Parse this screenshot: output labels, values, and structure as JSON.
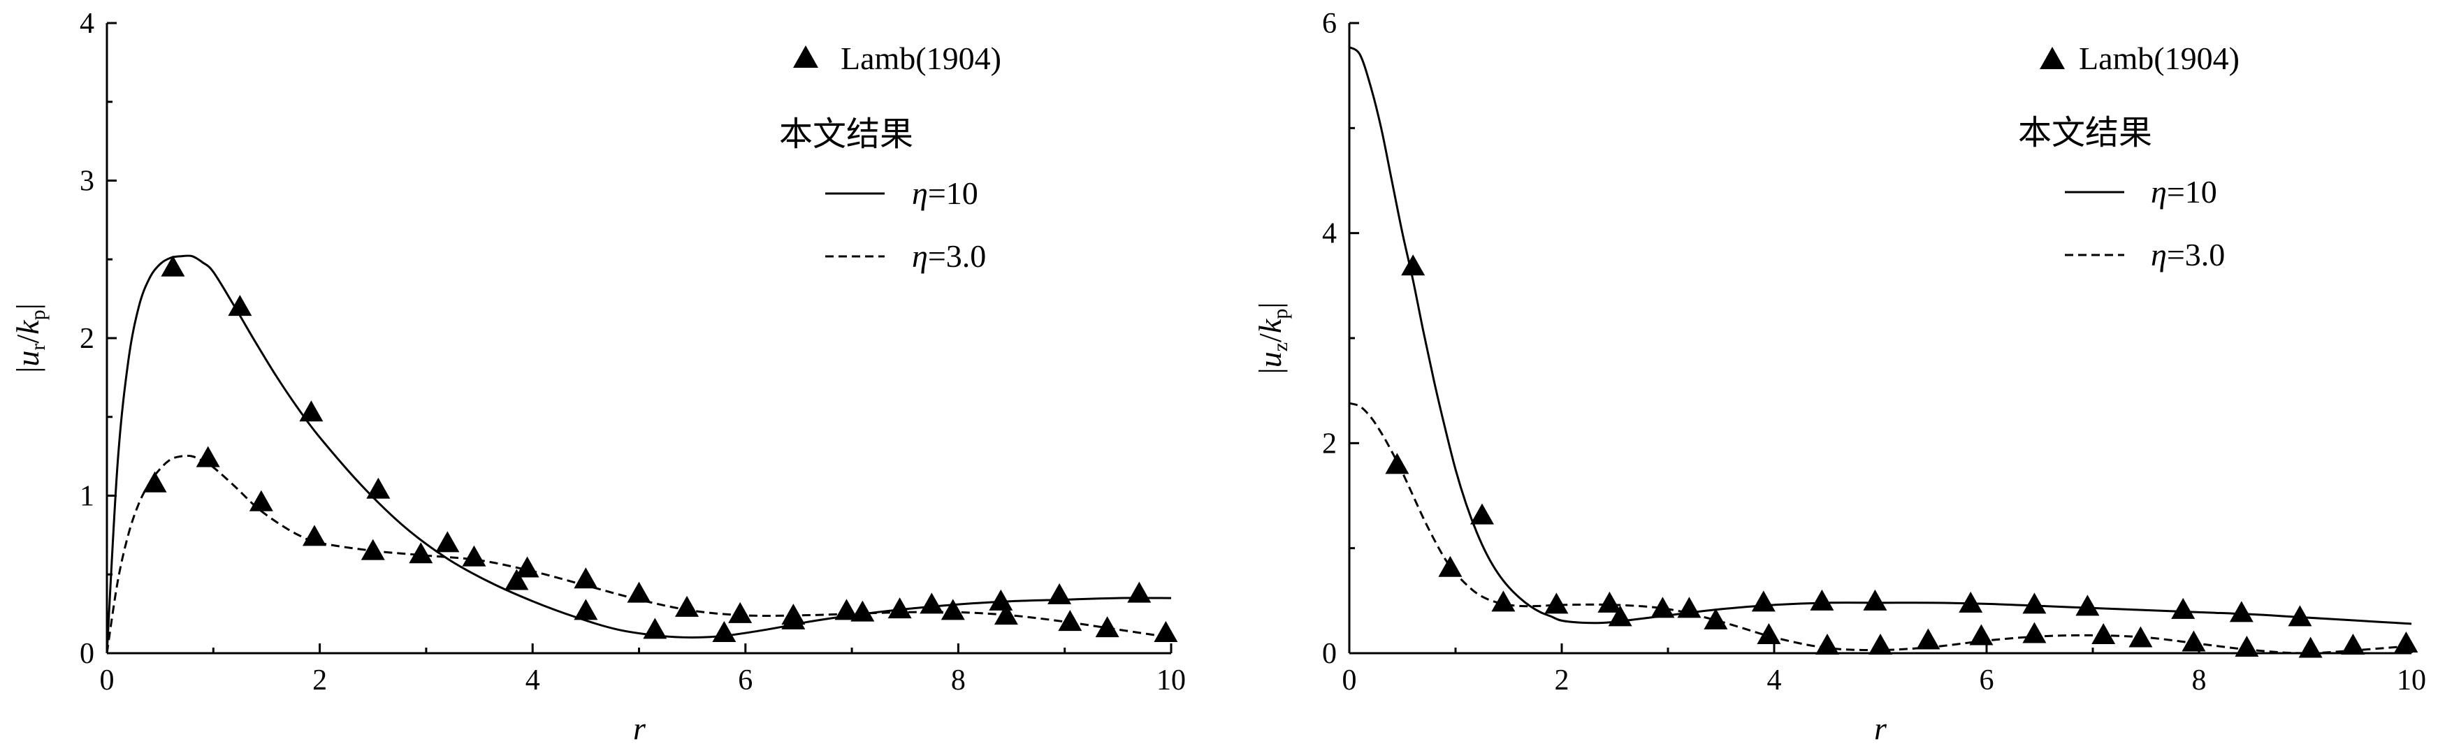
{
  "chart_data": [
    {
      "type": "line",
      "xlabel": "r",
      "ylabel": {
        "prefix": "|",
        "var": "u",
        "var_sub": "r",
        "slash": "/",
        "k": "k",
        "k_sub": "p",
        "suffix": "|"
      },
      "xlim": [
        0,
        10
      ],
      "ylim": [
        0,
        4
      ],
      "xticks": [
        0,
        2,
        4,
        6,
        8,
        10
      ],
      "yticks": [
        0,
        1,
        2,
        3,
        4
      ],
      "xtick_labels": [
        "0",
        "2",
        "4",
        "6",
        "8",
        "10"
      ],
      "ytick_labels": [
        "0",
        "1",
        "2",
        "3",
        "4"
      ],
      "legend": {
        "position": "top-right",
        "marker_label": "Lamb(1904)",
        "group_title": "本文结果",
        "solid": {
          "sym": "η",
          "rest": "=10"
        },
        "dashed": {
          "sym": "η",
          "rest": "=3.0"
        }
      },
      "series": [
        {
          "name": "η=10",
          "style": "solid",
          "x": [
            0,
            0.1,
            0.2,
            0.3,
            0.4,
            0.5,
            0.6,
            0.7,
            0.8,
            0.9,
            1.0,
            1.2,
            1.4,
            1.6,
            1.8,
            2.0,
            2.4,
            2.8,
            3.2,
            3.6,
            4.0,
            4.4,
            4.8,
            5.2,
            5.5,
            5.8,
            6.2,
            6.6,
            7.0,
            7.5,
            8.0,
            8.5,
            9.0,
            9.5,
            10.0
          ],
          "y": [
            0,
            1.2,
            1.85,
            2.2,
            2.38,
            2.47,
            2.51,
            2.52,
            2.52,
            2.48,
            2.42,
            2.2,
            1.97,
            1.75,
            1.55,
            1.37,
            1.06,
            0.8,
            0.6,
            0.45,
            0.33,
            0.23,
            0.15,
            0.11,
            0.1,
            0.11,
            0.15,
            0.2,
            0.24,
            0.28,
            0.31,
            0.33,
            0.34,
            0.35,
            0.35
          ]
        },
        {
          "name": "η=3.0",
          "style": "dashed",
          "x": [
            0,
            0.1,
            0.2,
            0.3,
            0.4,
            0.5,
            0.6,
            0.7,
            0.8,
            0.9,
            1.0,
            1.2,
            1.4,
            1.6,
            1.8,
            2.0,
            2.5,
            3.0,
            3.5,
            4.0,
            4.5,
            5.0,
            5.5,
            6.0,
            6.5,
            7.0,
            7.5,
            8.0,
            8.5,
            9.0,
            9.5,
            10.0
          ],
          "y": [
            0,
            0.45,
            0.75,
            0.95,
            1.08,
            1.17,
            1.23,
            1.25,
            1.25,
            1.22,
            1.18,
            1.06,
            0.93,
            0.83,
            0.75,
            0.7,
            0.65,
            0.62,
            0.59,
            0.52,
            0.43,
            0.34,
            0.27,
            0.24,
            0.24,
            0.25,
            0.26,
            0.26,
            0.24,
            0.2,
            0.15,
            0.1
          ]
        },
        {
          "name": "Lamb(1904)",
          "style": "marker",
          "x": [
            0.45,
            0.62,
            0.95,
            1.25,
            1.45,
            1.92,
            1.95,
            2.5,
            2.55,
            2.95,
            3.2,
            3.45,
            3.85,
            3.95,
            4.5,
            4.5,
            5.0,
            5.15,
            5.45,
            5.8,
            5.95,
            6.45,
            6.45,
            6.95,
            7.1,
            7.45,
            7.75,
            7.95,
            8.4,
            8.45,
            8.95,
            9.05,
            9.4,
            9.7,
            9.95
          ],
          "y": [
            1.07,
            2.44,
            1.23,
            2.19,
            0.95,
            1.52,
            0.73,
            0.64,
            1.03,
            0.62,
            0.69,
            0.6,
            0.45,
            0.53,
            0.46,
            0.26,
            0.37,
            0.14,
            0.28,
            0.12,
            0.24,
            0.2,
            0.23,
            0.26,
            0.25,
            0.27,
            0.3,
            0.26,
            0.32,
            0.23,
            0.36,
            0.19,
            0.15,
            0.37,
            0.12
          ]
        }
      ]
    },
    {
      "type": "line",
      "xlabel": "r",
      "ylabel": {
        "prefix": "|",
        "var": "u",
        "var_sub": "z",
        "slash": "/",
        "k": "k",
        "k_sub": "p",
        "suffix": "|"
      },
      "xlim": [
        0,
        10
      ],
      "ylim": [
        0,
        6
      ],
      "xticks": [
        0,
        2,
        4,
        6,
        8,
        10
      ],
      "yticks": [
        0,
        2,
        4,
        6
      ],
      "xtick_labels": [
        "0",
        "2",
        "4",
        "6",
        "8",
        "10"
      ],
      "ytick_labels": [
        "0",
        "2",
        "4",
        "6"
      ],
      "legend": {
        "position": "top-right",
        "marker_label": "Lamb(1904)",
        "group_title": "本文结果",
        "solid": {
          "sym": "η",
          "rest": "=10"
        },
        "dashed": {
          "sym": "η",
          "rest": "=3.0"
        }
      },
      "series": [
        {
          "name": "η=10",
          "style": "solid",
          "x": [
            0,
            0.1,
            0.2,
            0.3,
            0.4,
            0.5,
            0.6,
            0.7,
            0.8,
            0.9,
            1.0,
            1.1,
            1.2,
            1.3,
            1.4,
            1.5,
            1.6,
            1.7,
            1.8,
            1.9,
            2.0,
            2.2,
            2.4,
            2.6,
            3.0,
            3.5,
            4.0,
            4.5,
            5.0,
            5.5,
            6.0,
            6.5,
            7.0,
            7.5,
            8.0,
            8.5,
            9.0,
            9.5,
            10.0
          ],
          "y": [
            5.77,
            5.7,
            5.4,
            5.0,
            4.5,
            4.0,
            3.55,
            3.05,
            2.58,
            2.15,
            1.75,
            1.42,
            1.15,
            0.93,
            0.76,
            0.63,
            0.53,
            0.45,
            0.39,
            0.35,
            0.31,
            0.29,
            0.29,
            0.31,
            0.36,
            0.42,
            0.46,
            0.48,
            0.48,
            0.48,
            0.47,
            0.45,
            0.43,
            0.41,
            0.39,
            0.37,
            0.34,
            0.31,
            0.28
          ]
        },
        {
          "name": "η=3.0",
          "style": "dashed",
          "x": [
            0,
            0.1,
            0.2,
            0.3,
            0.4,
            0.5,
            0.6,
            0.7,
            0.8,
            0.9,
            1.0,
            1.2,
            1.4,
            1.6,
            1.8,
            2.0,
            2.5,
            3.0,
            3.5,
            4.0,
            4.5,
            5.0,
            5.5,
            6.0,
            6.5,
            7.0,
            7.5,
            8.0,
            8.5,
            9.0,
            9.5,
            10.0
          ],
          "y": [
            2.38,
            2.35,
            2.25,
            2.1,
            1.92,
            1.72,
            1.5,
            1.28,
            1.08,
            0.9,
            0.76,
            0.57,
            0.48,
            0.45,
            0.45,
            0.46,
            0.46,
            0.42,
            0.3,
            0.15,
            0.05,
            0.03,
            0.06,
            0.12,
            0.16,
            0.17,
            0.15,
            0.09,
            0.03,
            0.0,
            0.03,
            0.07
          ]
        },
        {
          "name": "Lamb(1904)",
          "style": "marker",
          "x": [
            0.45,
            0.6,
            0.95,
            1.25,
            1.45,
            1.95,
            2.45,
            2.55,
            2.95,
            3.2,
            3.45,
            3.9,
            3.95,
            4.45,
            4.5,
            4.95,
            5.0,
            5.45,
            5.85,
            5.95,
            6.45,
            6.45,
            6.95,
            7.1,
            7.45,
            7.85,
            7.95,
            8.4,
            8.45,
            8.95,
            9.05,
            9.45,
            9.95
          ],
          "y": [
            1.78,
            3.67,
            0.8,
            1.3,
            0.47,
            0.45,
            0.46,
            0.33,
            0.41,
            0.41,
            0.3,
            0.47,
            0.16,
            0.48,
            0.06,
            0.48,
            0.06,
            0.11,
            0.46,
            0.15,
            0.45,
            0.17,
            0.43,
            0.16,
            0.13,
            0.4,
            0.09,
            0.37,
            0.04,
            0.33,
            0.03,
            0.06,
            0.08
          ]
        }
      ]
    }
  ]
}
